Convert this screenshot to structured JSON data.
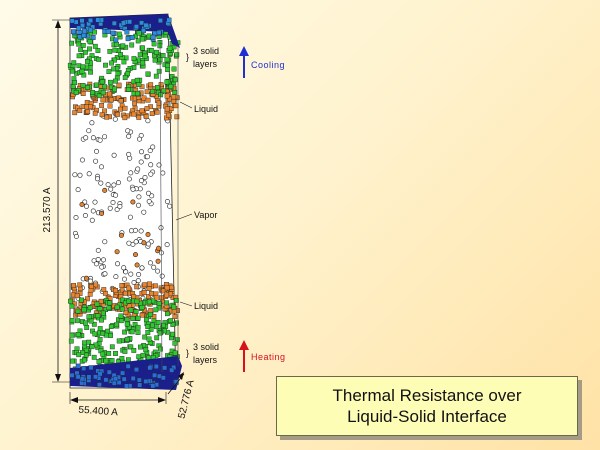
{
  "labels": {
    "top_solid_line1": "3 solid",
    "top_solid_line2": "layers",
    "cooling": "Cooling",
    "liquid_top": "Liquid",
    "vapor": "Vapor",
    "liquid_bottom": "Liquid",
    "bottom_solid_line1": "3 solid",
    "bottom_solid_line2": "layers",
    "heating": "Heating"
  },
  "dimensions": {
    "height": "213.570 A",
    "width": "55.400 A",
    "depth": "52.776 A"
  },
  "title": {
    "line1": "Thermal Resistance over",
    "line2": "Liquid-Solid Interface"
  },
  "colors": {
    "solid_wall": "#1b1f8c",
    "solid_atom": "#2ec92e",
    "liquid_atom": "#e8852e",
    "vapor_atom": "#ffffff",
    "cooling_arrow": "#1f2fd8",
    "heating_arrow": "#d8101a",
    "title_box": "#fdfdb6"
  }
}
